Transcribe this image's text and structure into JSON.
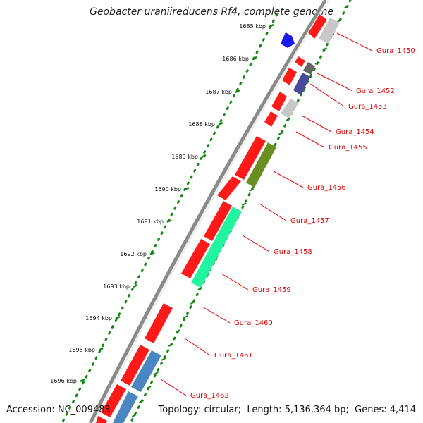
{
  "title": "Geobacter uraniireducens Rf4, complete genome",
  "footer": {
    "accession_label": "Accession:",
    "accession": "NC_009483",
    "topology_label": "Topology:",
    "topology": "circular",
    "length_label": "Length:",
    "length": "5,136,364 bp",
    "genes_label": "Genes:",
    "genes": "4,414"
  },
  "colors": {
    "forward_gene": "#ff0000",
    "backbone": "#8a8a8a",
    "tick_green": "#118811",
    "label_red": "#dd0000",
    "connector_red": "#ee0000"
  },
  "kbp_ticks": [
    "1685 kbp",
    "1686 kbp",
    "1687 kbp",
    "1688 kbp",
    "1689 kbp",
    "1690 kbp",
    "1691 kbp",
    "1692 kbp",
    "1693 kbp",
    "1694 kbp",
    "1695 kbp",
    "1696 kbp"
  ],
  "gene_labels": [
    "Gura_1450",
    "Gura_1452",
    "Gura_1453",
    "Gura_1454",
    "Gura_1455",
    "Gura_1456",
    "Gura_1457",
    "Gura_1458",
    "Gura_1459",
    "Gura_1460",
    "Gura_1461",
    "Gura_1462"
  ],
  "feature_colors": {
    "blue": "#1a1aee",
    "light_gray": "#c8c8c8",
    "dark_gray": "#666666",
    "slate_blue": "#4a4a9a",
    "olive": "#6b8e23",
    "mint": "#22f5a0",
    "steel_blue": "#4a86c0"
  }
}
